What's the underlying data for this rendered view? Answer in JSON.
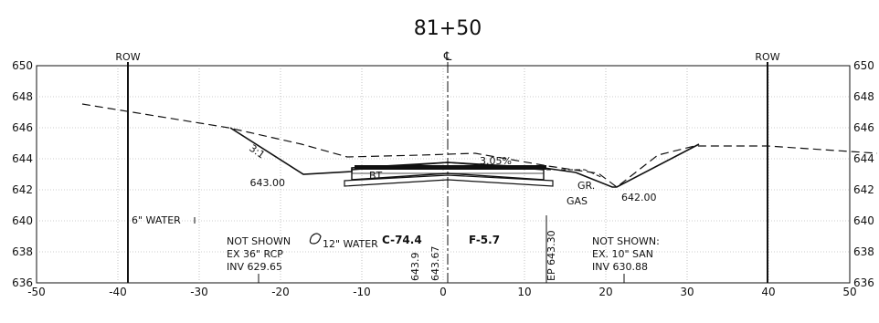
{
  "title": "81+50",
  "centerline_symbol": "℄",
  "left_row_label": "ROW",
  "right_row_label": "ROW",
  "x_axis": {
    "min": -50,
    "max": 50,
    "ticks": [
      "-50",
      "-40",
      "-30",
      "-20",
      "-10",
      "0",
      "10",
      "20",
      "30",
      "40",
      "50"
    ]
  },
  "y_axis": {
    "min": 636,
    "max": 650,
    "ticks": [
      "636",
      "638",
      "640",
      "642",
      "644",
      "646",
      "648",
      "650"
    ]
  },
  "annotations": {
    "slope_ratio": "3:1",
    "grade_pct": "3.05%",
    "left_elev": "643.00",
    "right_elev": "642.00",
    "water_6": "6\" WATER",
    "water_12": "12\" WATER",
    "gas": "GAS",
    "gr": "GR.",
    "cut": "C-74.4",
    "fill": "F-5.7",
    "el_1": "643.9",
    "el_2": "643.67",
    "ep": "EP 643.30",
    "not_shown_1": "NOT SHOWN",
    "rcp_1": "EX 36\" RCP",
    "inv_1": "INV 629.65",
    "not_shown_2": "NOT SHOWN:",
    "san_2": "EX. 10\" SAN",
    "inv_2": "INV 630.88",
    "bt": "BT"
  },
  "colors": {
    "line": "#111111",
    "grid": "#9a9a9a"
  }
}
